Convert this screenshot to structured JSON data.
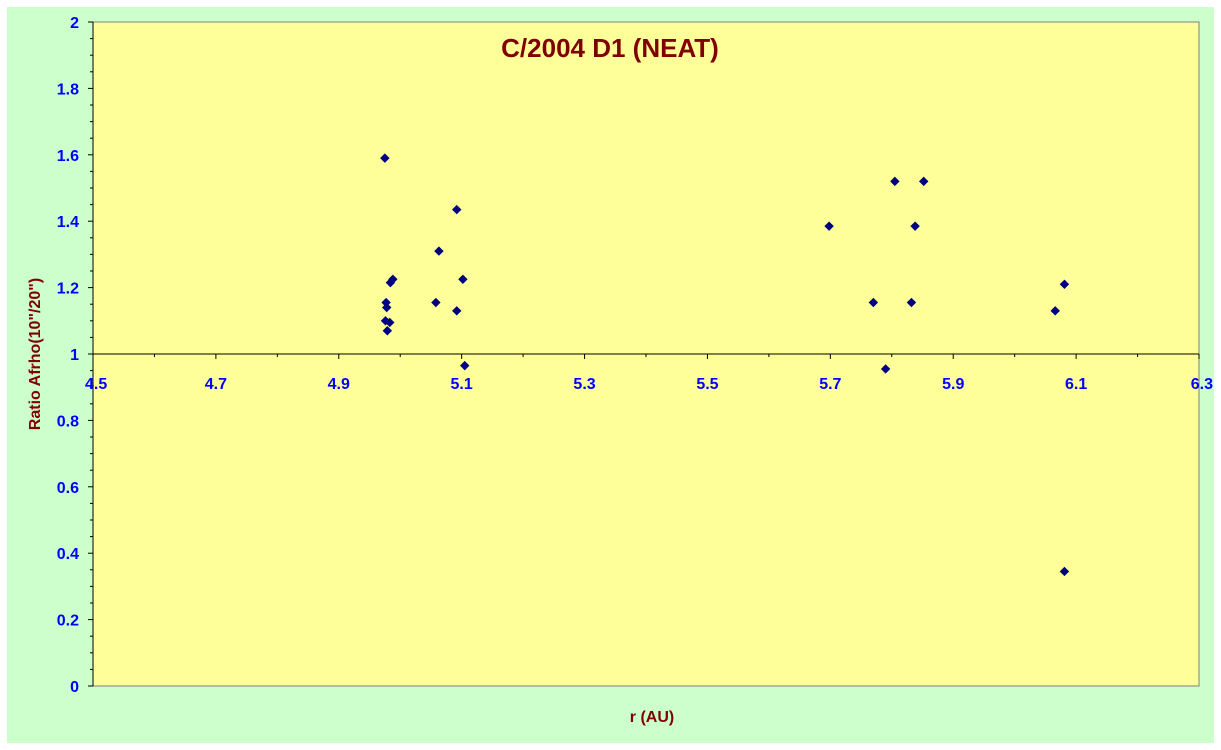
{
  "chart_data": {
    "type": "scatter",
    "title": "C/2004 D1 (NEAT)",
    "xlabel": "r (AU)",
    "ylabel": "Ratio Afrho(10\"/20\")",
    "xlim": [
      4.5,
      6.3
    ],
    "ylim": [
      0,
      2
    ],
    "xticks": [
      "4.5",
      "4.7",
      "4.9",
      "5.1",
      "5.3",
      "5.5",
      "5.7",
      "5.9",
      "6.1",
      "6.3"
    ],
    "yticks": [
      "0",
      "0.2",
      "0.4",
      "0.6",
      "0.8",
      "1",
      "1.2",
      "1.4",
      "1.6",
      "1.8",
      "2"
    ],
    "x_axis_crosses_at": 1,
    "grid": false,
    "legend": "none",
    "colors": {
      "plot_background": "#ffff99",
      "chart_background": "#ccffcc",
      "marker": "#000080",
      "tick_labels": "#0000ff",
      "titles": "#800000"
    },
    "series": [
      {
        "points": [
          [
            4.975,
            1.59
          ],
          [
            4.977,
            1.155
          ],
          [
            4.978,
            1.14
          ],
          [
            4.976,
            1.1
          ],
          [
            4.979,
            1.07
          ],
          [
            4.983,
            1.095
          ],
          [
            4.984,
            1.215
          ],
          [
            4.988,
            1.225
          ],
          [
            5.058,
            1.155
          ],
          [
            5.063,
            1.31
          ],
          [
            5.092,
            1.435
          ],
          [
            5.092,
            1.13
          ],
          [
            5.102,
            1.225
          ],
          [
            5.105,
            0.965
          ],
          [
            5.698,
            1.385
          ],
          [
            5.77,
            1.155
          ],
          [
            5.79,
            0.955
          ],
          [
            5.805,
            1.52
          ],
          [
            5.832,
            1.155
          ],
          [
            5.838,
            1.385
          ],
          [
            5.852,
            1.52
          ],
          [
            6.066,
            1.13
          ],
          [
            6.081,
            1.21
          ],
          [
            6.081,
            0.345
          ]
        ]
      }
    ]
  }
}
